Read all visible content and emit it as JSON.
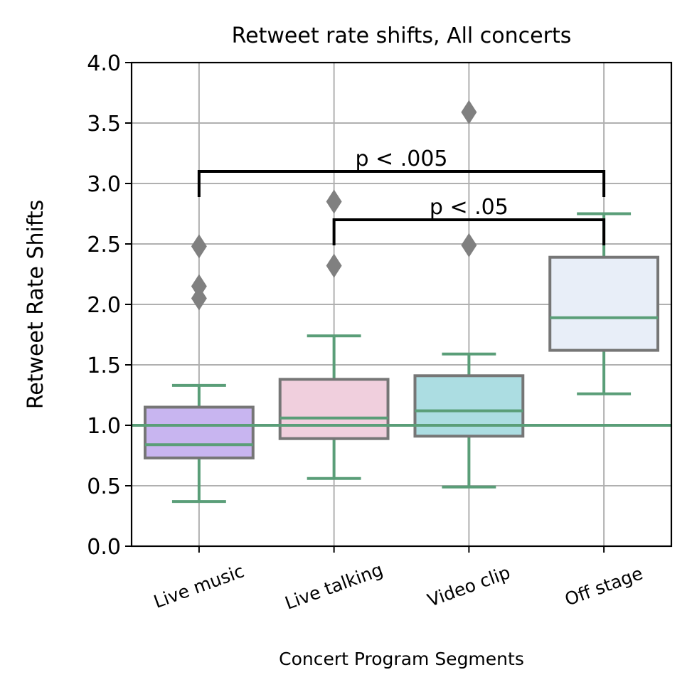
{
  "chart_data": {
    "type": "box",
    "title": "Retweet rate shifts, All concerts",
    "xlabel": "Concert Program Segments",
    "ylabel": "Retweet Rate Shifts",
    "ylim": [
      0,
      4.0
    ],
    "yticks": [
      "0.0",
      "0.5",
      "1.0",
      "1.5",
      "2.0",
      "2.5",
      "3.0",
      "3.5",
      "4.0"
    ],
    "grid": true,
    "reference_line": 1.0,
    "categories": [
      "Live music",
      "Live talking",
      "Video clip",
      "Off stage"
    ],
    "boxes": [
      {
        "category": "Live music",
        "whisker_low": 0.37,
        "q1": 0.73,
        "median": 0.84,
        "q3": 1.15,
        "whisker_high": 1.33,
        "outliers": [
          2.05,
          2.15,
          2.48
        ],
        "fill": "#c8b5f0"
      },
      {
        "category": "Live talking",
        "whisker_low": 0.56,
        "q1": 0.89,
        "median": 1.06,
        "q3": 1.38,
        "whisker_high": 1.74,
        "outliers": [
          2.32,
          2.85
        ],
        "fill": "#f0cfdd"
      },
      {
        "category": "Video clip",
        "whisker_low": 0.49,
        "q1": 0.91,
        "median": 1.12,
        "q3": 1.41,
        "whisker_high": 1.59,
        "outliers": [
          2.49,
          3.59
        ],
        "fill": "#acdde2"
      },
      {
        "category": "Off stage",
        "whisker_low": 1.26,
        "q1": 1.62,
        "median": 1.89,
        "q3": 2.39,
        "whisker_high": 2.75,
        "outliers": [],
        "fill": "#e8eef8"
      }
    ],
    "significance": [
      {
        "from": "Live music",
        "to": "Off stage",
        "y": 3.1,
        "label": "p < .005"
      },
      {
        "from": "Live talking",
        "to": "Off stage",
        "y": 2.7,
        "label": "p < .05"
      }
    ],
    "colors": {
      "whisker": "#5a9e78",
      "box_edge": "#767676",
      "outlier": "#808080",
      "grid": "#b0b0b0",
      "bracket": "#000000"
    }
  }
}
